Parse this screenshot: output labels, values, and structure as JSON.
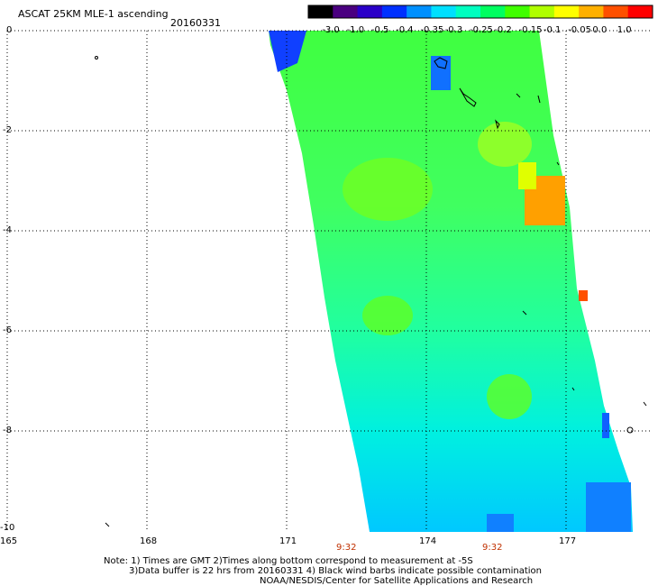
{
  "header": {
    "title": "ASCAT 25KM MLE-1 ascending",
    "date": "20160331"
  },
  "colorbar": {
    "labels": [
      "-3.0",
      "-1.0",
      "-0.5",
      "-0.4",
      "-0.35",
      "-0.3",
      "-0.25",
      "-0.2",
      "-0.15",
      "-0.1",
      "-0.05",
      "0.0",
      "1.0"
    ],
    "colors": [
      "#000000",
      "#4a0080",
      "#2a00c8",
      "#0030ff",
      "#0090ff",
      "#00e0ff",
      "#00ffc0",
      "#00ff60",
      "#40ff00",
      "#b0ff00",
      "#ffff00",
      "#ffb000",
      "#ff5000",
      "#ff0000"
    ]
  },
  "axes": {
    "lat_labels": [
      "0",
      "-2",
      "-4",
      "-6",
      "-8",
      "-10"
    ],
    "lon_labels": [
      "165",
      "168",
      "171",
      "174",
      "177"
    ],
    "time_labels": [
      "9:32",
      "9:32"
    ]
  },
  "notes": {
    "line1": "Note: 1) Times are GMT 2)Times along bottom correspond to measurement at -5S",
    "line2": "3)Data buffer is 22 hrs from 20160331 4) Black wind barbs indicate possible contamination",
    "line3": "NOAA/NESDIS/Center for Satellite Applications and Research"
  }
}
